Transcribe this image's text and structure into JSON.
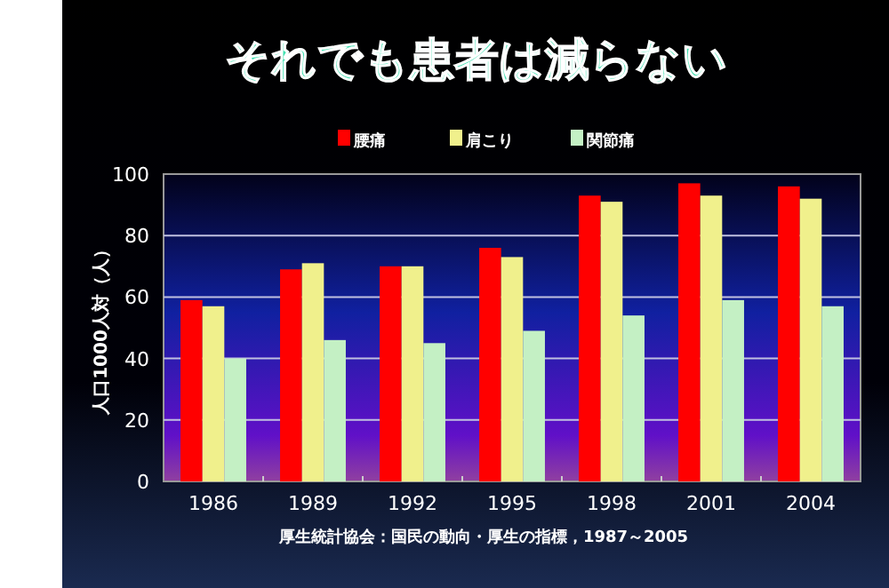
{
  "chart_data": {
    "type": "bar",
    "title": "それでも患者は減らない",
    "ylabel": "人口1000人対（人）",
    "categories": [
      "1986",
      "1989",
      "1992",
      "1995",
      "1998",
      "2001",
      "2004"
    ],
    "series": [
      {
        "name": "腰痛",
        "color": "#ff0000",
        "values": [
          59,
          69,
          70,
          76,
          93,
          97,
          96
        ]
      },
      {
        "name": "肩こり",
        "color": "#f0f08c",
        "values": [
          57,
          71,
          70,
          73,
          91,
          93,
          92
        ]
      },
      {
        "name": "関節痛",
        "color": "#c4f0c4",
        "values": [
          40,
          46,
          45,
          49,
          54,
          59,
          57
        ]
      }
    ],
    "ylim": [
      0,
      100
    ],
    "yticks": [
      0,
      20,
      40,
      60,
      80,
      100
    ],
    "grid": "y",
    "legend": "top",
    "annotations": [
      "厚生統計協会：国民の動向・厚生の指標，1987～2005"
    ]
  }
}
